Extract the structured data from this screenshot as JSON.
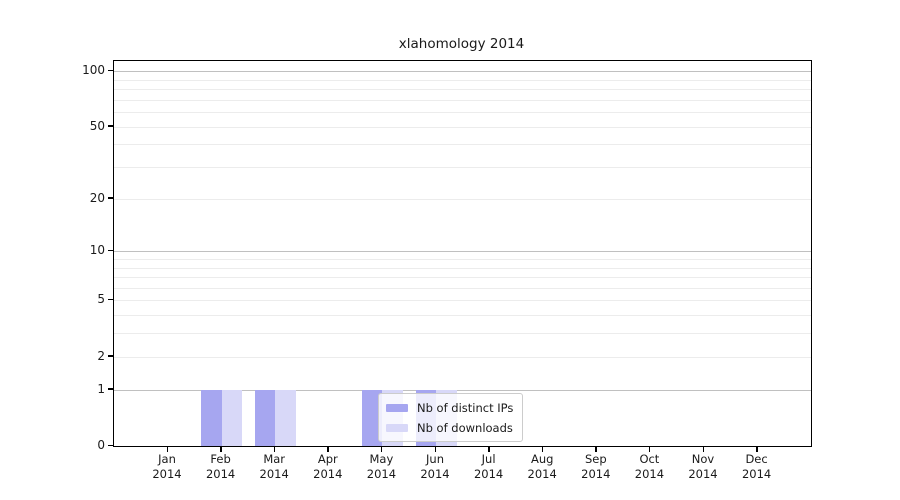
{
  "figure": {
    "title": "xlahomology 2014"
  },
  "chart_data": {
    "type": "bar",
    "title": "xlahomology 2014",
    "x_tick_months": [
      "Jan",
      "Feb",
      "Mar",
      "Apr",
      "May",
      "Jun",
      "Jul",
      "Aug",
      "Sep",
      "Oct",
      "Nov",
      "Dec"
    ],
    "x_tick_year": "2014",
    "categories": [
      "Jan 2014",
      "Feb 2014",
      "Mar 2014",
      "Apr 2014",
      "May 2014",
      "Jun 2014",
      "Jul 2014",
      "Aug 2014",
      "Sep 2014",
      "Oct 2014",
      "Nov 2014",
      "Dec 2014"
    ],
    "series": [
      {
        "name": "Nb of distinct IPs",
        "color": "#a6a6f0",
        "values": [
          0,
          1,
          1,
          0,
          1,
          1,
          0,
          0,
          0,
          0,
          0,
          0
        ]
      },
      {
        "name": "Nb of downloads",
        "color": "#d8d8f8",
        "values": [
          0,
          1,
          1,
          0,
          1,
          1,
          0,
          0,
          0,
          0,
          0,
          0
        ]
      }
    ],
    "y_axis": {
      "scale": "log1p",
      "tick_values": [
        0,
        1,
        2,
        5,
        10,
        20,
        50,
        100
      ],
      "grid_values_minor": [
        3,
        4,
        6,
        7,
        8,
        9,
        30,
        40,
        60,
        70,
        80,
        90,
        2,
        5,
        20,
        50
      ],
      "grid_values_major": [
        1,
        10,
        100
      ],
      "ylim": [
        0,
        113
      ]
    },
    "grid": true,
    "legend": {
      "position": "lower-center",
      "entries": [
        "Nb of distinct IPs",
        "Nb of downloads"
      ]
    }
  },
  "colors": {
    "distinct_ips": "#a6a6f0",
    "downloads": "#d8d8f8",
    "grid_major": "#c0c0c0",
    "grid_minor": "#ececec",
    "axis": "#000000"
  }
}
